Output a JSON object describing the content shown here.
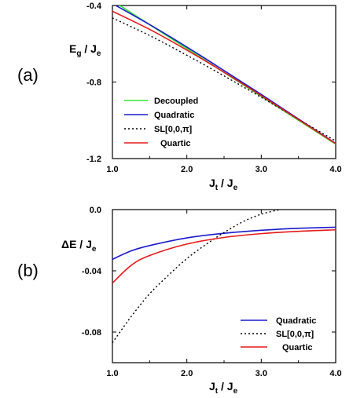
{
  "chart_data": [
    {
      "type": "line",
      "panel_label": "(a)",
      "xlabel": "J_t / J_e",
      "ylabel": "E_g / J_e",
      "xlim": [
        1.0,
        4.0
      ],
      "ylim": [
        -1.2,
        -0.4
      ],
      "xticks": [
        "1.0",
        "2.0",
        "3.0",
        "4.0"
      ],
      "yticks": [
        "-0.4",
        "-0.8",
        "-1.2"
      ],
      "ytick_values": [
        -0.4,
        -0.8,
        -1.2
      ],
      "legend_placement": "bottom-left",
      "series": [
        {
          "name": "Decoupled",
          "color": "#33e633",
          "dash": "solid",
          "x": [
            1.0,
            4.0
          ],
          "y": [
            -0.375,
            -1.125
          ]
        },
        {
          "name": "Quadratic",
          "color": "#1a1acc",
          "dash": "solid",
          "x": [
            1.0,
            1.5,
            2.0,
            2.5,
            3.0,
            3.5,
            4.0
          ],
          "y": [
            -0.39,
            -0.5,
            -0.617,
            -0.74,
            -0.865,
            -0.993,
            -1.121
          ]
        },
        {
          "name": "SL[0,0,π]",
          "color": "#000000",
          "dash": "dotted",
          "x": [
            1.0,
            1.5,
            2.0,
            2.5,
            3.0,
            3.5,
            4.0
          ],
          "y": [
            -0.465,
            -0.557,
            -0.66,
            -0.768,
            -0.88,
            -0.995,
            -1.108
          ]
        },
        {
          "name": "Quartic",
          "color": "#e61a1a",
          "dash": "solid",
          "x": [
            1.0,
            1.5,
            2.0,
            2.5,
            3.0,
            3.5,
            4.0
          ],
          "y": [
            -0.43,
            -0.525,
            -0.633,
            -0.749,
            -0.871,
            -0.996,
            -1.122
          ]
        }
      ]
    },
    {
      "type": "line",
      "panel_label": "(b)",
      "xlabel": "J_t / J_e",
      "ylabel": "ΔE / J_e",
      "xlim": [
        1.0,
        4.0
      ],
      "ylim": [
        -0.1,
        0.0
      ],
      "xticks": [
        "1.0",
        "2.0",
        "3.0",
        "4.0"
      ],
      "yticks": [
        "0.0",
        "-0.04",
        "-0.08"
      ],
      "ytick_values": [
        0.0,
        -0.04,
        -0.08
      ],
      "legend_placement": "bottom-right",
      "series": [
        {
          "name": "Quadratic",
          "color": "#1a1acc",
          "dash": "solid",
          "x": [
            1.0,
            1.25,
            1.5,
            2.0,
            2.5,
            3.0,
            3.5,
            4.0
          ],
          "y": [
            -0.0325,
            -0.027,
            -0.0235,
            -0.0185,
            -0.0155,
            -0.0135,
            -0.0122,
            -0.0115
          ]
        },
        {
          "name": "SL[0,0,π]",
          "color": "#000000",
          "dash": "dotted",
          "x": [
            1.0,
            1.25,
            1.5,
            1.75,
            2.0,
            2.25,
            2.5,
            2.75,
            3.0,
            3.25
          ],
          "y": [
            -0.087,
            -0.07,
            -0.055,
            -0.043,
            -0.032,
            -0.023,
            -0.015,
            -0.008,
            -0.003,
            0.0
          ]
        },
        {
          "name": "Quartic",
          "color": "#e61a1a",
          "dash": "solid",
          "x": [
            1.0,
            1.25,
            1.5,
            2.0,
            2.5,
            3.0,
            3.5,
            4.0
          ],
          "y": [
            -0.048,
            -0.0365,
            -0.03,
            -0.0225,
            -0.0182,
            -0.0157,
            -0.0142,
            -0.0132
          ]
        }
      ]
    }
  ]
}
